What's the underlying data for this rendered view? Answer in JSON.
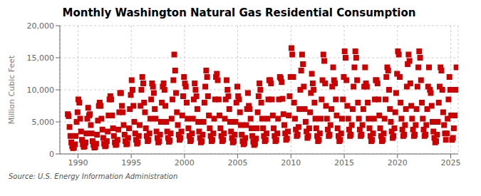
{
  "chart_data": {
    "type": "scatter",
    "title": "Monthly Washington Natural Gas Residential Consumption",
    "ylabel": "Million Cubic Feet",
    "annotations": [
      "Source: U.S. Energy Information Administration"
    ],
    "color": "#cc0000",
    "marker": "square",
    "grid": true,
    "xlim": [
      1988.3,
      2025.7
    ],
    "ylim": [
      0,
      20000
    ],
    "xticks": [
      1990,
      1995,
      2000,
      2005,
      2010,
      2015,
      2020,
      2025
    ],
    "yticks": [
      0,
      {
        "value": 5000,
        "label": "5,000"
      },
      {
        "value": 10000,
        "label": "10,000"
      },
      {
        "value": 15000,
        "label": "15,000"
      },
      {
        "value": 20000,
        "label": "20,000"
      }
    ],
    "x": [
      1989.0416666666667,
      1989.125,
      1989.2083333333333,
      1989.2916666666667,
      1989.375,
      1989.4583333333333,
      1989.5416666666667,
      1989.625,
      1989.7083333333333,
      1989.7916666666667,
      1989.875,
      1989.9583333333333,
      1990.0416666666667,
      1990.125,
      1990.2083333333333,
      1990.2916666666667,
      1990.375,
      1990.4583333333333,
      1990.5416666666667,
      1990.625,
      1990.7083333333333,
      1990.7916666666667,
      1990.875,
      1990.9583333333333,
      1991.0416666666667,
      1991.125,
      1991.2083333333333,
      1991.2916666666667,
      1991.375,
      1991.4583333333333,
      1991.5416666666667,
      1991.625,
      1991.7083333333333,
      1991.7916666666667,
      1991.875,
      1991.9583333333333,
      1992.0416666666667,
      1992.125,
      1992.2083333333333,
      1992.2916666666667,
      1992.375,
      1992.4583333333333,
      1992.5416666666667,
      1992.625,
      1992.7083333333333,
      1992.7916666666667,
      1992.875,
      1992.9583333333333,
      1993.0416666666667,
      1993.125,
      1993.2083333333333,
      1993.2916666666667,
      1993.375,
      1993.4583333333333,
      1993.5416666666667,
      1993.625,
      1993.7083333333333,
      1993.7916666666667,
      1993.875,
      1993.9583333333333,
      1994.0416666666667,
      1994.125,
      1994.2083333333333,
      1994.2916666666667,
      1994.375,
      1994.4583333333333,
      1994.5416666666667,
      1994.625,
      1994.7083333333333,
      1994.7916666666667,
      1994.875,
      1994.9583333333333,
      1995.0416666666667,
      1995.125,
      1995.2083333333333,
      1995.2916666666667,
      1995.375,
      1995.4583333333333,
      1995.5416666666667,
      1995.625,
      1995.7083333333333,
      1995.7916666666667,
      1995.875,
      1995.9583333333333,
      1996.0416666666667,
      1996.125,
      1996.2083333333333,
      1996.2916666666667,
      1996.375,
      1996.4583333333333,
      1996.5416666666667,
      1996.625,
      1996.7083333333333,
      1996.7916666666667,
      1996.875,
      1996.9583333333333,
      1997.0416666666667,
      1997.125,
      1997.2083333333333,
      1997.2916666666667,
      1997.375,
      1997.4583333333333,
      1997.5416666666667,
      1997.625,
      1997.7083333333333,
      1997.7916666666667,
      1997.875,
      1997.9583333333333,
      1998.0416666666667,
      1998.125,
      1998.2083333333333,
      1998.2916666666667,
      1998.375,
      1998.4583333333333,
      1998.5416666666667,
      1998.625,
      1998.7083333333333,
      1998.7916666666667,
      1998.875,
      1998.9583333333333,
      1999.0416666666667,
      1999.125,
      1999.2083333333333,
      1999.2916666666667,
      1999.375,
      1999.4583333333333,
      1999.5416666666667,
      1999.625,
      1999.7083333333333,
      1999.7916666666667,
      1999.875,
      1999.9583333333333,
      2000.0416666666667,
      2000.125,
      2000.2083333333333,
      2000.2916666666667,
      2000.375,
      2000.4583333333333,
      2000.5416666666667,
      2000.625,
      2000.7083333333333,
      2000.7916666666667,
      2000.875,
      2000.9583333333333,
      2001.0416666666667,
      2001.125,
      2001.2083333333333,
      2001.2916666666667,
      2001.375,
      2001.4583333333333,
      2001.5416666666667,
      2001.625,
      2001.7083333333333,
      2001.7916666666667,
      2001.875,
      2001.9583333333333,
      2002.0416666666667,
      2002.125,
      2002.2083333333333,
      2002.2916666666667,
      2002.375,
      2002.4583333333333,
      2002.5416666666667,
      2002.625,
      2002.7083333333333,
      2002.7916666666667,
      2002.875,
      2002.9583333333333,
      2003.0416666666667,
      2003.125,
      2003.2083333333333,
      2003.2916666666667,
      2003.375,
      2003.4583333333333,
      2003.5416666666667,
      2003.625,
      2003.7083333333333,
      2003.7916666666667,
      2003.875,
      2003.9583333333333,
      2004.0416666666667,
      2004.125,
      2004.2083333333333,
      2004.2916666666667,
      2004.375,
      2004.4583333333333,
      2004.5416666666667,
      2004.625,
      2004.7083333333333,
      2004.7916666666667,
      2004.875,
      2004.9583333333333,
      2005.0416666666667,
      2005.125,
      2005.2083333333333,
      2005.2916666666667,
      2005.375,
      2005.4583333333333,
      2005.5416666666667,
      2005.625,
      2005.7083333333333,
      2005.7916666666667,
      2005.875,
      2005.9583333333333,
      2006.0416666666667,
      2006.125,
      2006.2083333333333,
      2006.2916666666667,
      2006.375,
      2006.4583333333333,
      2006.5416666666667,
      2006.625,
      2006.7083333333333,
      2006.7916666666667,
      2006.875,
      2006.9583333333333,
      2007.0416666666667,
      2007.125,
      2007.2083333333333,
      2007.2916666666667,
      2007.375,
      2007.4583333333333,
      2007.5416666666667,
      2007.625,
      2007.7083333333333,
      2007.7916666666667,
      2007.875,
      2007.9583333333333,
      2008.0416666666667,
      2008.125,
      2008.2083333333333,
      2008.2916666666667,
      2008.375,
      2008.4583333333333,
      2008.5416666666667,
      2008.625,
      2008.7083333333333,
      2008.7916666666667,
      2008.875,
      2008.9583333333333,
      2009.0416666666667,
      2009.125,
      2009.2083333333333,
      2009.2916666666667,
      2009.375,
      2009.4583333333333,
      2009.5416666666667,
      2009.625,
      2009.7083333333333,
      2009.7916666666667,
      2009.875,
      2009.9583333333333,
      2010.0416666666667,
      2010.125,
      2010.2083333333333,
      2010.2916666666667,
      2010.375,
      2010.4583333333333,
      2010.5416666666667,
      2010.625,
      2010.7083333333333,
      2010.7916666666667,
      2010.875,
      2010.9583333333333,
      2011.0416666666667,
      2011.125,
      2011.2083333333333,
      2011.2916666666667,
      2011.375,
      2011.4583333333333,
      2011.5416666666667,
      2011.625,
      2011.7083333333333,
      2011.7916666666667,
      2011.875,
      2011.9583333333333,
      2012.0416666666667,
      2012.125,
      2012.2083333333333,
      2012.2916666666667,
      2012.375,
      2012.4583333333333,
      2012.5416666666667,
      2012.625,
      2012.7083333333333,
      2012.7916666666667,
      2012.875,
      2012.9583333333333,
      2013.0416666666667,
      2013.125,
      2013.2083333333333,
      2013.2916666666667,
      2013.375,
      2013.4583333333333,
      2013.5416666666667,
      2013.625,
      2013.7083333333333,
      2013.7916666666667,
      2013.875,
      2013.9583333333333,
      2014.0416666666667,
      2014.125,
      2014.2083333333333,
      2014.2916666666667,
      2014.375,
      2014.4583333333333,
      2014.5416666666667,
      2014.625,
      2014.7083333333333,
      2014.7916666666667,
      2014.875,
      2014.9583333333333,
      2015.0416666666667,
      2015.125,
      2015.2083333333333,
      2015.2916666666667,
      2015.375,
      2015.4583333333333,
      2015.5416666666667,
      2015.625,
      2015.7083333333333,
      2015.7916666666667,
      2015.875,
      2015.9583333333333,
      2016.0416666666667,
      2016.125,
      2016.2083333333333,
      2016.2916666666667,
      2016.375,
      2016.4583333333333,
      2016.5416666666667,
      2016.625,
      2016.7083333333333,
      2016.7916666666667,
      2016.875,
      2016.9583333333333,
      2017.0416666666667,
      2017.125,
      2017.2083333333333,
      2017.2916666666667,
      2017.375,
      2017.4583333333333,
      2017.5416666666667,
      2017.625,
      2017.7083333333333,
      2017.7916666666667,
      2017.875,
      2017.9583333333333,
      2018.0416666666667,
      2018.125,
      2018.2083333333333,
      2018.2916666666667,
      2018.375,
      2018.4583333333333,
      2018.5416666666667,
      2018.625,
      2018.7083333333333,
      2018.7916666666667,
      2018.875,
      2018.9583333333333,
      2019.0416666666667,
      2019.125,
      2019.2083333333333,
      2019.2916666666667,
      2019.375,
      2019.4583333333333,
      2019.5416666666667,
      2019.625,
      2019.7083333333333,
      2019.7916666666667,
      2019.875,
      2019.9583333333333,
      2020.0416666666667,
      2020.125,
      2020.2083333333333,
      2020.2916666666667,
      2020.375,
      2020.4583333333333,
      2020.5416666666667,
      2020.625,
      2020.7083333333333,
      2020.7916666666667,
      2020.875,
      2020.9583333333333,
      2021.0416666666667,
      2021.125,
      2021.2083333333333,
      2021.2916666666667,
      2021.375,
      2021.4583333333333,
      2021.5416666666667,
      2021.625,
      2021.7083333333333,
      2021.7916666666667,
      2021.875,
      2021.9583333333333,
      2022.0416666666667,
      2022.125,
      2022.2083333333333,
      2022.2916666666667,
      2022.375,
      2022.4583333333333,
      2022.5416666666667,
      2022.625,
      2022.7083333333333,
      2022.7916666666667,
      2022.875,
      2022.9583333333333,
      2023.0416666666667,
      2023.125,
      2023.2083333333333,
      2023.2916666666667,
      2023.375,
      2023.4583333333333,
      2023.5416666666667,
      2023.625,
      2023.7083333333333,
      2023.7916666666667,
      2023.875,
      2023.9583333333333,
      2024.0416666666667,
      2024.125,
      2024.2083333333333,
      2024.2916666666667,
      2024.375,
      2024.4583333333333,
      2024.5416666666667,
      2024.625,
      2024.7083333333333,
      2024.7916666666667,
      2024.875,
      2024.9583333333333,
      2025.0416666666667,
      2025.125,
      2025.2083333333333,
      2025.2916666666667,
      2025.375,
      2025.4583333333333,
      2025.5416666666667
    ],
    "values": [
      6200,
      5900,
      4200,
      2800,
      1800,
      1200,
      900,
      1000,
      1500,
      2800,
      5000,
      6500,
      8500,
      8000,
      5500,
      3500,
      2200,
      1500,
      1100,
      1200,
      1800,
      3200,
      5500,
      7200,
      6000,
      6200,
      4500,
      3200,
      2000,
      1400,
      1000,
      1100,
      1600,
      3000,
      5200,
      7500,
      8000,
      7500,
      5500,
      3800,
      2500,
      1600,
      1200,
      1300,
      2000,
      3500,
      6000,
      8500,
      9000,
      8500,
      6000,
      4000,
      2800,
      1800,
      1400,
      1500,
      2200,
      3800,
      6500,
      9500,
      9500,
      7500,
      6500,
      4500,
      3000,
      2000,
      1500,
      1600,
      2500,
      4000,
      7000,
      9200,
      11500,
      10000,
      7500,
      5000,
      3200,
      2200,
      1600,
      1800,
      2800,
      4500,
      7500,
      10000,
      12000,
      11000,
      8000,
      6500,
      4000,
      2800,
      2000,
      2200,
      3200,
      5500,
      8500,
      11000,
      10500,
      9500,
      7000,
      5500,
      3500,
      2500,
      1800,
      2000,
      3000,
      5000,
      8000,
      10500,
      11000,
      10000,
      7500,
      5000,
      3500,
      2500,
      1900,
      2100,
      3200,
      5500,
      8500,
      11500,
      15500,
      13000,
      9500,
      6500,
      4500,
      3000,
      2200,
      2500,
      3500,
      6000,
      9000,
      12000,
      11000,
      10500,
      8000,
      5500,
      4000,
      2800,
      2000,
      2200,
      3200,
      5500,
      8500,
      11000,
      10000,
      9000,
      7000,
      5000,
      3500,
      2500,
      1800,
      2000,
      3000,
      5000,
      8000,
      10500,
      13000,
      12000,
      9000,
      6000,
      4000,
      2800,
      2000,
      2200,
      3200,
      5500,
      8500,
      12000,
      12500,
      11500,
      8500,
      6000,
      4000,
      2800,
      2000,
      2200,
      3200,
      5500,
      8500,
      11500,
      10000,
      9000,
      7000,
      5000,
      3500,
      2500,
      1800,
      2000,
      3000,
      5000,
      8000,
      10500,
      9000,
      8500,
      6500,
      4500,
      3000,
      2000,
      1500,
      1700,
      2500,
      4500,
      7000,
      9500,
      7500,
      7000,
      5500,
      4000,
      2800,
      1900,
      1400,
      1600,
      2400,
      4000,
      6500,
      9000,
      11000,
      10000,
      8000,
      5500,
      4000,
      2800,
      2000,
      2200,
      3200,
      5500,
      8500,
      11500,
      11500,
      11000,
      8500,
      6000,
      4000,
      2800,
      2000,
      2200,
      3200,
      5500,
      8500,
      12000,
      11800,
      11200,
      8600,
      6200,
      4500,
      3200,
      2200,
      2400,
      3500,
      6000,
      9000,
      12000,
      16500,
      15500,
      12000,
      8000,
      5500,
      3800,
      2800,
      3000,
      4200,
      7000,
      10000,
      13000,
      15500,
      14000,
      10500,
      7000,
      5000,
      3500,
      2500,
      2800,
      4000,
      6500,
      9500,
      12500,
      11000,
      10000,
      8000,
      5500,
      4000,
      2800,
      2000,
      2200,
      3200,
      5500,
      8500,
      11500,
      15500,
      14500,
      11000,
      7500,
      5500,
      3800,
      2800,
      3000,
      4500,
      7000,
      10500,
      13500,
      11500,
      11000,
      8500,
      6000,
      4000,
      2800,
      2000,
      2200,
      3200,
      5500,
      8500,
      12000,
      16000,
      15000,
      11500,
      7500,
      5500,
      3800,
      2800,
      3000,
      4500,
      7000,
      10500,
      13500,
      16000,
      15000,
      11500,
      8000,
      5500,
      3800,
      2800,
      3000,
      4500,
      7000,
      10500,
      13500,
      11000,
      10500,
      8000,
      5500,
      4000,
      2800,
      2000,
      2200,
      3200,
      5500,
      8500,
      11500,
      11500,
      11000,
      8500,
      6000,
      4000,
      2800,
      2000,
      2200,
      3200,
      5500,
      8500,
      12000,
      13500,
      13000,
      10000,
      7000,
      5000,
      3500,
      2500,
      2800,
      4000,
      6500,
      9500,
      12500,
      16000,
      15500,
      12000,
      8000,
      5500,
      3800,
      2800,
      3000,
      4500,
      7000,
      10500,
      14000,
      15500,
      14500,
      11000,
      7500,
      5500,
      3800,
      2800,
      3000,
      4500,
      7000,
      10500,
      13500,
      16000,
      15000,
      11500,
      8000,
      5500,
      3800,
      2800,
      3000,
      4500,
      7000,
      10500,
      13500,
      10000,
      9500,
      7500,
      5000,
      3500,
      2500,
      1800,
      2000,
      3000,
      5000,
      8000,
      10500,
      13500,
      13000,
      10000,
      6500,
      4500,
      3200,
      2200,
      3200,
      5500,
      8500,
      12000,
      10000,
      6000,
      2200,
      2500,
      4000,
      6000,
      10000,
      13500
    ]
  }
}
